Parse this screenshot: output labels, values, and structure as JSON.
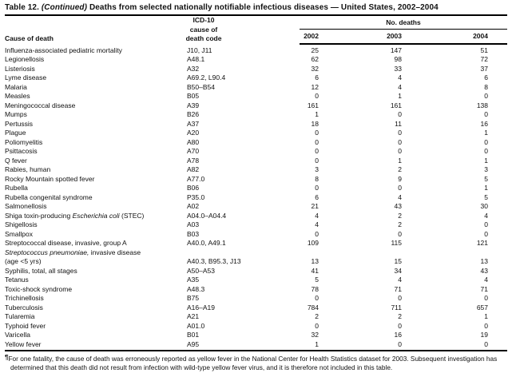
{
  "title": {
    "label": "Table 12.",
    "continued": "(Continued)",
    "text": "Deaths from selected nationally notifiable infectious diseases — United States, 2002–2004"
  },
  "header": {
    "cause": "Cause of death",
    "code_lines": [
      "ICD-10",
      "cause of",
      "death code"
    ],
    "deaths_group": "No. deaths",
    "years": [
      "2002",
      "2003",
      "2004"
    ]
  },
  "table": {
    "rows": [
      {
        "cause": "Influenza-associated pediatric mortality",
        "code": "J10, J11",
        "values": [
          "25",
          "147",
          "51"
        ]
      },
      {
        "cause": "Legionellosis",
        "code": "A48.1",
        "values": [
          "62",
          "98",
          "72"
        ]
      },
      {
        "cause": "Listeriosis",
        "code": "A32",
        "values": [
          "32",
          "33",
          "37"
        ]
      },
      {
        "cause": "Lyme disease",
        "code": "A69.2, L90.4",
        "values": [
          "6",
          "4",
          "6"
        ]
      },
      {
        "cause": "Malaria",
        "code": "B50–B54",
        "values": [
          "12",
          "4",
          "8"
        ]
      },
      {
        "cause": "Measles",
        "code": "B05",
        "values": [
          "0",
          "1",
          "0"
        ]
      },
      {
        "cause": "Meningococcal disease",
        "code": "A39",
        "values": [
          "161",
          "161",
          "138"
        ]
      },
      {
        "cause": "Mumps",
        "code": "B26",
        "values": [
          "1",
          "0",
          "0"
        ]
      },
      {
        "cause": "Pertussis",
        "code": "A37",
        "values": [
          "18",
          "11",
          "16"
        ]
      },
      {
        "cause": "Plague",
        "code": "A20",
        "values": [
          "0",
          "0",
          "1"
        ]
      },
      {
        "cause": "Poliomyelitis",
        "code": "A80",
        "values": [
          "0",
          "0",
          "0"
        ]
      },
      {
        "cause": "Psittacosis",
        "code": "A70",
        "values": [
          "0",
          "0",
          "0"
        ]
      },
      {
        "cause": "Q fever",
        "code": "A78",
        "values": [
          "0",
          "1",
          "1"
        ]
      },
      {
        "cause": "Rabies, human",
        "code": "A82",
        "values": [
          "3",
          "2",
          "3"
        ]
      },
      {
        "cause": "Rocky Mountain spotted fever",
        "code": "A77.0",
        "values": [
          "8",
          "9",
          "5"
        ]
      },
      {
        "cause": "Rubella",
        "code": "B06",
        "values": [
          "0",
          "0",
          "1"
        ]
      },
      {
        "cause": "Rubella congenital syndrome",
        "code": "P35.0",
        "values": [
          "6",
          "4",
          "5"
        ]
      },
      {
        "cause": "Salmonellosis",
        "code": "A02",
        "values": [
          "21",
          "43",
          "30"
        ]
      },
      {
        "cause": "Shiga toxin-producing *Escherichia coli* (STEC)",
        "code": "A04.0–A04.4",
        "values": [
          "4",
          "2",
          "4"
        ]
      },
      {
        "cause": "Shigellosis",
        "code": "A03",
        "values": [
          "4",
          "2",
          "0"
        ]
      },
      {
        "cause": "Smallpox",
        "code": "B03",
        "values": [
          "0",
          "0",
          "0"
        ]
      },
      {
        "cause": "Streptococcal disease, invasive, group A",
        "code": "A40.0, A49.1",
        "values": [
          "109",
          "115",
          "121"
        ]
      },
      {
        "cause": "*Streptococcus pneumoniae,* invasive disease",
        "cause_line2": " (age <5 yrs)",
        "code": "A40.3, B95.3, J13",
        "values": [
          "13",
          "15",
          "13"
        ]
      },
      {
        "cause": "Syphilis, total, all stages",
        "code": "A50–A53",
        "values": [
          "41",
          "34",
          "43"
        ]
      },
      {
        "cause": "Tetanus",
        "code": "A35",
        "values": [
          "5",
          "4",
          "4"
        ]
      },
      {
        "cause": "Toxic-shock syndrome",
        "code": "A48.3",
        "values": [
          "78",
          "71",
          "71"
        ]
      },
      {
        "cause": "Trichinellosis",
        "code": "B75",
        "values": [
          "0",
          "0",
          "0"
        ]
      },
      {
        "cause": "Tuberculosis",
        "code": "A16–A19",
        "values": [
          "784",
          "711",
          "657"
        ]
      },
      {
        "cause": "Tularemia",
        "code": "A21",
        "values": [
          "2",
          "2",
          "1"
        ]
      },
      {
        "cause": "Typhoid fever",
        "code": "A01.0",
        "values": [
          "0",
          "0",
          "0"
        ]
      },
      {
        "cause": "Varicella",
        "code": "B01",
        "values": [
          "32",
          "16",
          "19"
        ]
      },
      {
        "cause": "Yellow fever",
        "code": "A95",
        "values": [
          "1",
          "0",
          "0"
        ]
      }
    ]
  },
  "footnote": {
    "marker": "¶",
    "text": "For one fatality, the cause of death was erroneously reported as yellow fever in the National Center for Health Statistics dataset for 2003. Subsequent investigation has determined that this death did not result from infection with wild-type yellow fever virus, and it is therefore not included in this table."
  }
}
